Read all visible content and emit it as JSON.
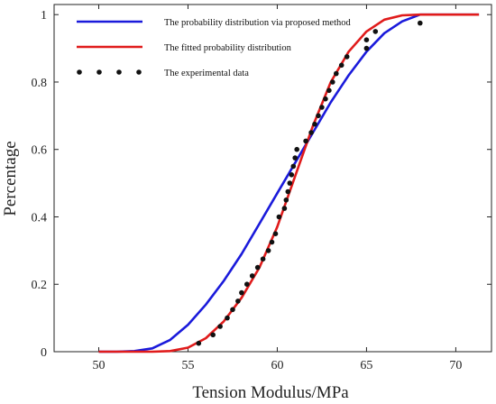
{
  "chart_data": {
    "type": "line",
    "xlabel": "Tension Modulus/MPa",
    "ylabel": "Percentage",
    "xlim": [
      47.5,
      72
    ],
    "ylim": [
      0,
      1.03
    ],
    "xticks": [
      50,
      55,
      60,
      65,
      70
    ],
    "yticks": [
      0,
      0.2,
      0.4,
      0.6,
      0.8,
      1
    ],
    "xtick_labels": [
      "50",
      "55",
      "60",
      "65",
      "70"
    ],
    "ytick_labels": [
      "0",
      "0.2",
      "0.4",
      "0.6",
      "0.8",
      "1"
    ],
    "grid": false,
    "legend_position": "top-left",
    "series": [
      {
        "name": "The probability distribution via proposed method",
        "style": "line",
        "color": "#1a1adb",
        "x": [
          50,
          51,
          52,
          53,
          54,
          55,
          56,
          57,
          58,
          59,
          60,
          61,
          62,
          63,
          64,
          65,
          66,
          67,
          68,
          69,
          70,
          71.3
        ],
        "y": [
          0,
          0,
          0.002,
          0.01,
          0.035,
          0.08,
          0.14,
          0.21,
          0.29,
          0.38,
          0.47,
          0.56,
          0.65,
          0.74,
          0.82,
          0.89,
          0.945,
          0.98,
          1.0,
          1.0,
          1.0,
          1.0
        ]
      },
      {
        "name": "The fitted probability distribution",
        "style": "line",
        "color": "#e01b1b",
        "x": [
          50,
          51,
          52,
          53,
          54,
          55,
          56,
          57,
          58,
          59,
          60,
          61,
          62,
          63,
          64,
          65,
          66,
          67,
          68,
          69,
          70,
          71.3
        ],
        "y": [
          0,
          0,
          0,
          0,
          0.002,
          0.012,
          0.04,
          0.09,
          0.16,
          0.25,
          0.37,
          0.52,
          0.67,
          0.8,
          0.89,
          0.95,
          0.985,
          0.998,
          1.0,
          1.0,
          1.0,
          1.0
        ]
      },
      {
        "name": "The experimental  data",
        "style": "points",
        "color": "#111111",
        "x": [
          55.6,
          56.4,
          56.8,
          57.2,
          57.5,
          57.8,
          58.0,
          58.3,
          58.6,
          58.9,
          59.2,
          59.5,
          59.7,
          59.9,
          60.1,
          60.4,
          60.5,
          60.6,
          60.7,
          60.8,
          60.9,
          61.0,
          61.1,
          61.6,
          61.9,
          62.1,
          62.3,
          62.5,
          62.7,
          62.9,
          63.1,
          63.3,
          63.6,
          63.9,
          65.0,
          65.0,
          65.5,
          68.0
        ],
        "y": [
          0.025,
          0.05,
          0.075,
          0.1,
          0.125,
          0.15,
          0.175,
          0.2,
          0.225,
          0.25,
          0.275,
          0.3,
          0.325,
          0.35,
          0.4,
          0.425,
          0.45,
          0.475,
          0.5,
          0.525,
          0.55,
          0.575,
          0.6,
          0.625,
          0.65,
          0.675,
          0.7,
          0.725,
          0.75,
          0.775,
          0.8,
          0.825,
          0.85,
          0.875,
          0.9,
          0.925,
          0.95,
          0.975
        ]
      }
    ]
  }
}
